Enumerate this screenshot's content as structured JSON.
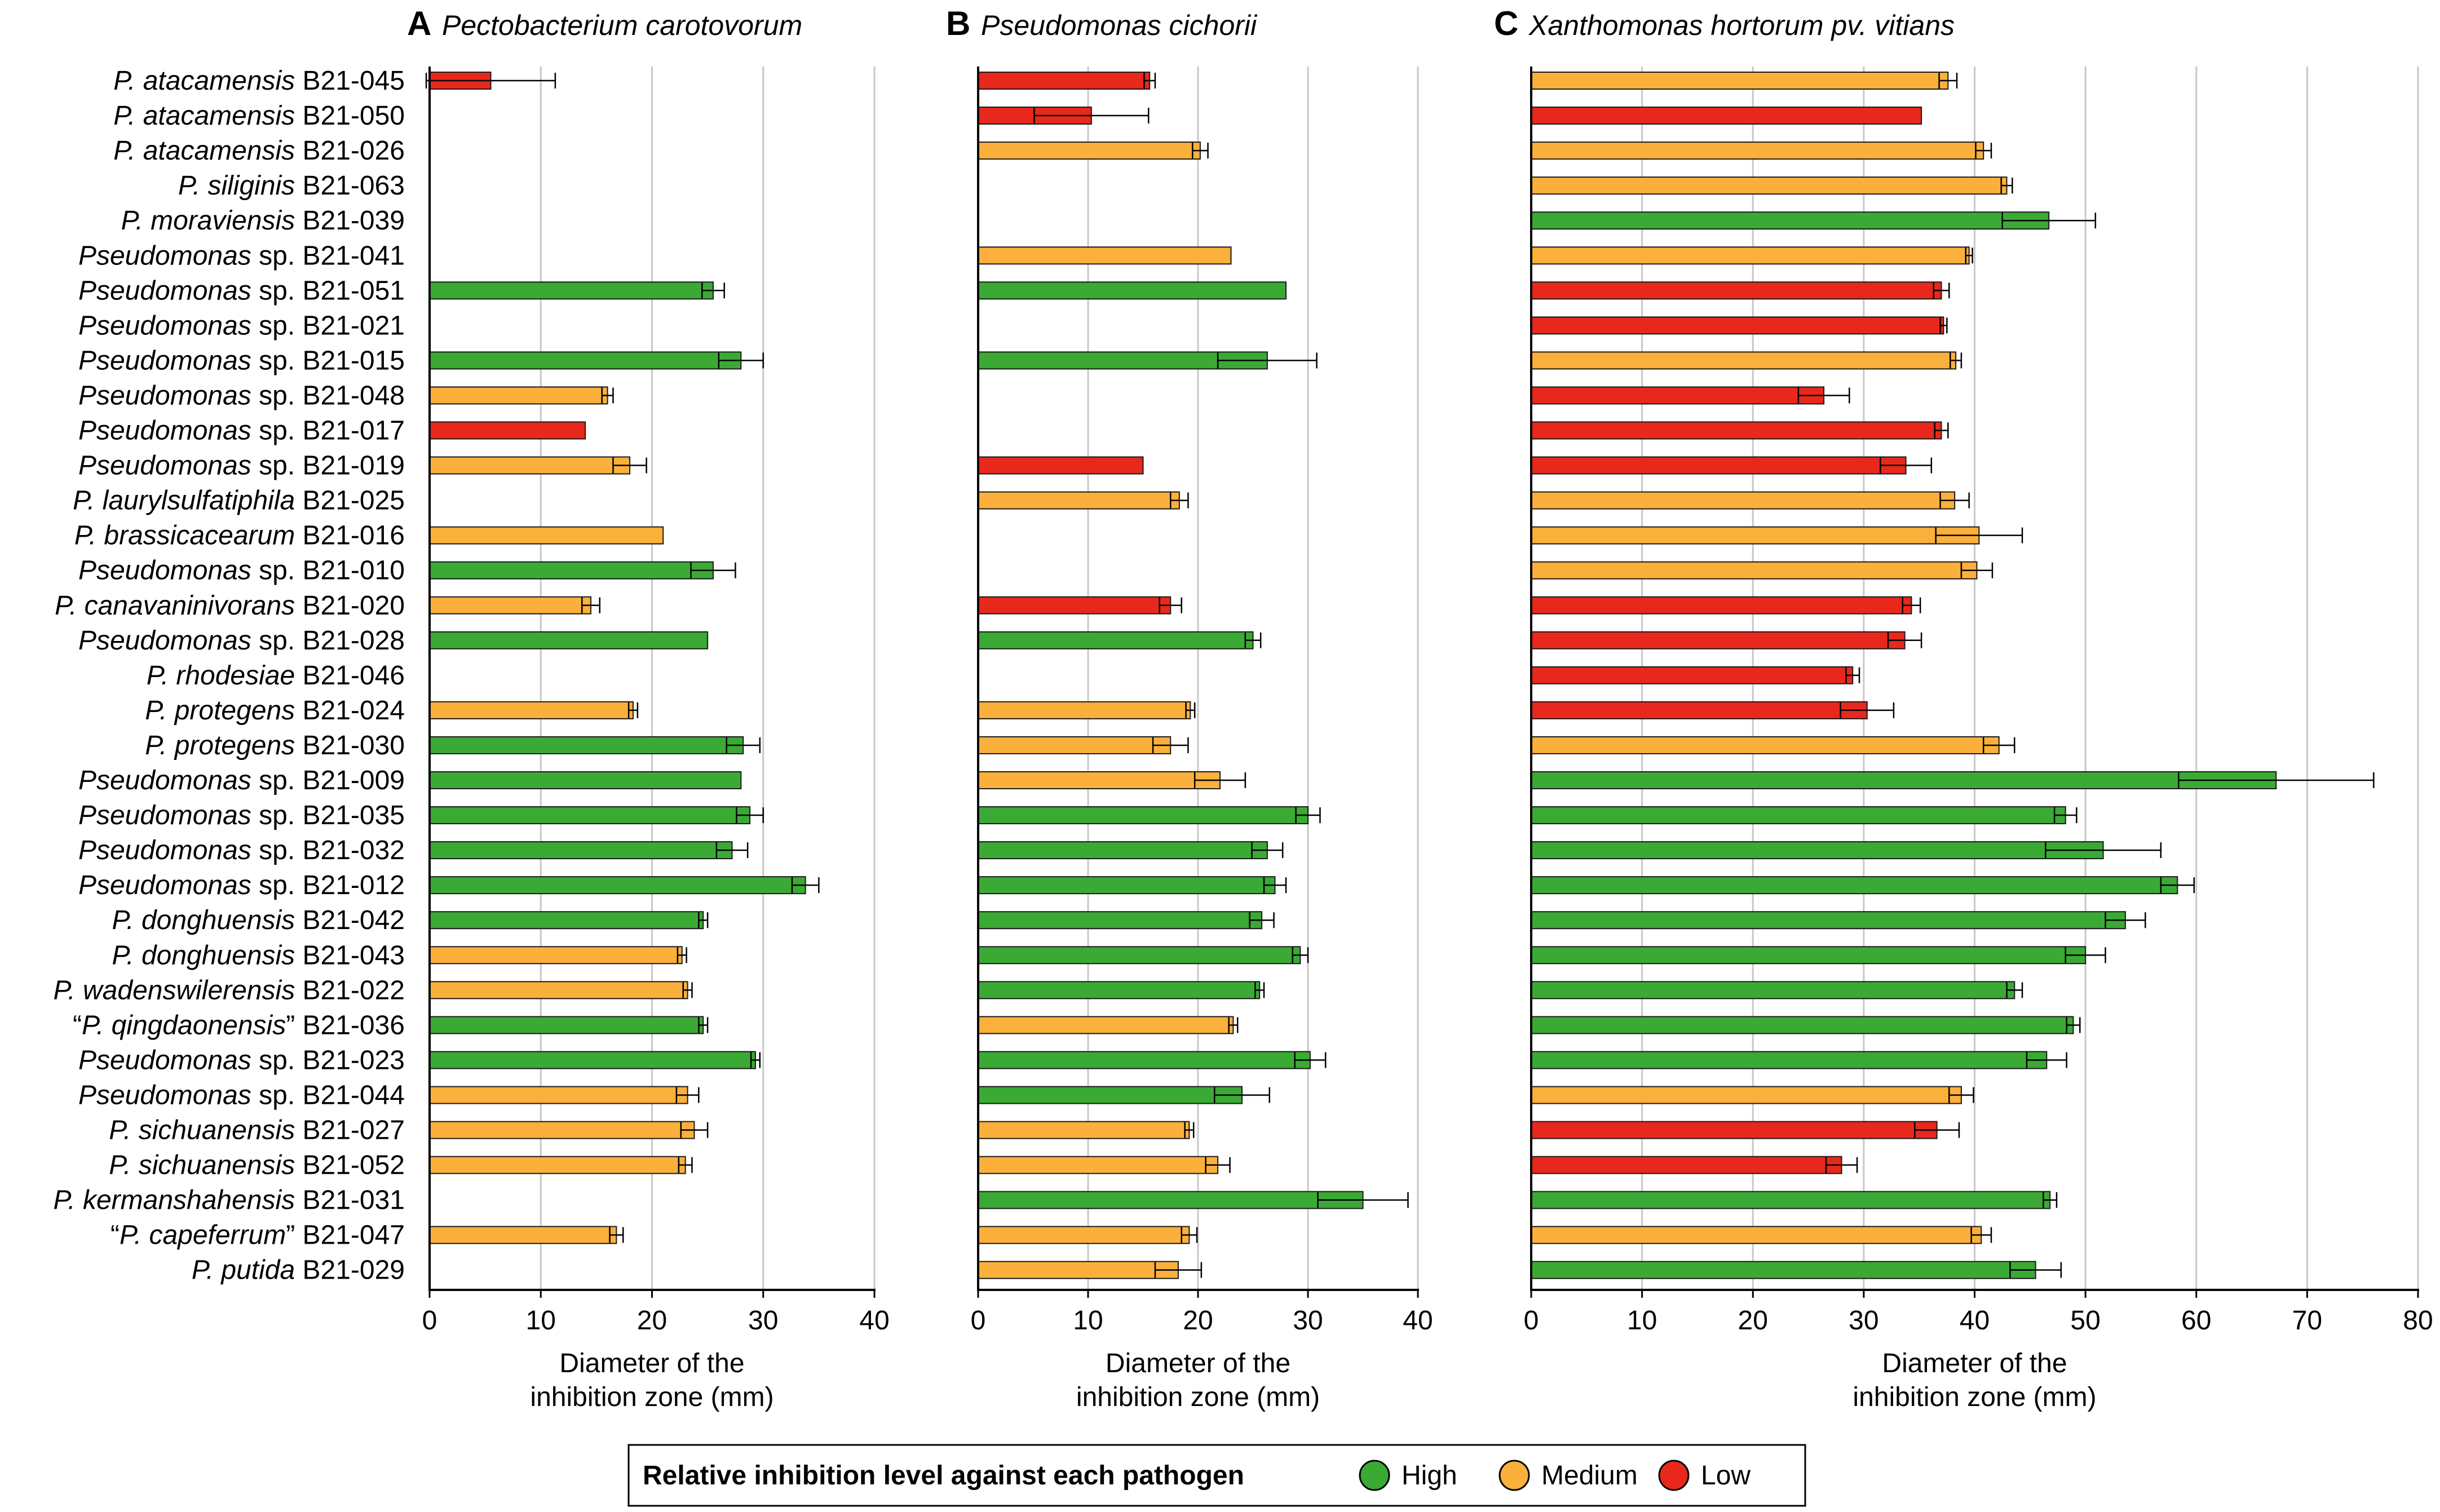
{
  "colors": {
    "High": "#3aaa35",
    "Medium": "#fbb03b",
    "Low": "#e8281c",
    "grid": "#c8c8c8"
  },
  "legend": {
    "title": "Relative inhibition level against each pathogen",
    "items": [
      {
        "label": "High",
        "level": "High"
      },
      {
        "label": "Medium",
        "level": "Medium"
      },
      {
        "label": "Low",
        "level": "Low"
      }
    ]
  },
  "strains": [
    {
      "name": "P. atacamensis",
      "prefix": "",
      "suffix": "",
      "code": "B21-045"
    },
    {
      "name": "P. atacamensis",
      "prefix": "",
      "suffix": "",
      "code": "B21-050"
    },
    {
      "name": "P. atacamensis",
      "prefix": "",
      "suffix": "",
      "code": "B21-026"
    },
    {
      "name": "P. siliginis",
      "prefix": "",
      "suffix": "",
      "code": "B21-063"
    },
    {
      "name": "P. moraviensis",
      "prefix": "",
      "suffix": "",
      "code": "B21-039"
    },
    {
      "name": "Pseudomonas",
      "prefix": "",
      "suffix": " sp.",
      "code": "B21-041"
    },
    {
      "name": "Pseudomonas",
      "prefix": "",
      "suffix": " sp.",
      "code": "B21-051"
    },
    {
      "name": "Pseudomonas",
      "prefix": "",
      "suffix": " sp.",
      "code": "B21-021"
    },
    {
      "name": "Pseudomonas",
      "prefix": "",
      "suffix": " sp.",
      "code": "B21-015"
    },
    {
      "name": "Pseudomonas",
      "prefix": "",
      "suffix": " sp.",
      "code": "B21-048"
    },
    {
      "name": "Pseudomonas",
      "prefix": "",
      "suffix": " sp.",
      "code": "B21-017"
    },
    {
      "name": "Pseudomonas",
      "prefix": "",
      "suffix": " sp.",
      "code": "B21-019"
    },
    {
      "name": "P. laurylsulfatiphila",
      "prefix": "",
      "suffix": "",
      "code": "B21-025"
    },
    {
      "name": "P. brassicacearum",
      "prefix": "",
      "suffix": "",
      "code": "B21-016"
    },
    {
      "name": "Pseudomonas",
      "prefix": "",
      "suffix": " sp.",
      "code": "B21-010"
    },
    {
      "name": "P. canavaninivorans",
      "prefix": "",
      "suffix": "",
      "code": "B21-020"
    },
    {
      "name": "Pseudomonas",
      "prefix": "",
      "suffix": " sp.",
      "code": "B21-028"
    },
    {
      "name": "P. rhodesiae",
      "prefix": "",
      "suffix": "",
      "code": "B21-046"
    },
    {
      "name": "P. protegens",
      "prefix": "",
      "suffix": "",
      "code": "B21-024"
    },
    {
      "name": "P. protegens",
      "prefix": "",
      "suffix": "",
      "code": "B21-030"
    },
    {
      "name": "Pseudomonas",
      "prefix": "",
      "suffix": " sp.",
      "code": "B21-009"
    },
    {
      "name": "Pseudomonas",
      "prefix": "",
      "suffix": " sp.",
      "code": "B21-035"
    },
    {
      "name": "Pseudomonas",
      "prefix": "",
      "suffix": " sp.",
      "code": "B21-032"
    },
    {
      "name": "Pseudomonas",
      "prefix": "",
      "suffix": " sp.",
      "code": "B21-012"
    },
    {
      "name": "P. donghuensis",
      "prefix": "",
      "suffix": "",
      "code": "B21-042"
    },
    {
      "name": "P. donghuensis",
      "prefix": "",
      "suffix": "",
      "code": "B21-043"
    },
    {
      "name": "P. wadenswilerensis",
      "prefix": "",
      "suffix": "",
      "code": "B21-022"
    },
    {
      "name": "P. qingdaonensis",
      "prefix": "“",
      "suffix": "”",
      "code": "B21-036"
    },
    {
      "name": "Pseudomonas",
      "prefix": "",
      "suffix": " sp.",
      "code": "B21-023"
    },
    {
      "name": "Pseudomonas",
      "prefix": "",
      "suffix": " sp.",
      "code": "B21-044"
    },
    {
      "name": "P. sichuanensis",
      "prefix": "",
      "suffix": "",
      "code": "B21-027"
    },
    {
      "name": "P. sichuanensis",
      "prefix": "",
      "suffix": "",
      "code": "B21-052"
    },
    {
      "name": "P. kermanshahensis",
      "prefix": "",
      "suffix": "",
      "code": "B21-031"
    },
    {
      "name": "P. capeferrum",
      "prefix": "“",
      "suffix": "”",
      "code": "B21-047"
    },
    {
      "name": "P. putida",
      "prefix": "",
      "suffix": "",
      "code": "B21-029"
    }
  ],
  "chart_data": [
    {
      "type": "bar",
      "orientation": "horizontal",
      "panel": "A",
      "title": "Pectobacterium carotovorum",
      "xlabel": "Diameter of the inhibition zone (mm)",
      "xlabel_lines": [
        "Diameter of the",
        "inhibition zone (mm)"
      ],
      "xlim": [
        0,
        40
      ],
      "xticks": [
        0,
        10,
        20,
        30,
        40
      ],
      "grid": true,
      "values": [
        5.5,
        null,
        null,
        null,
        null,
        null,
        25.5,
        null,
        28,
        16,
        14,
        18,
        null,
        21,
        25.5,
        14.5,
        25,
        null,
        18.3,
        28.2,
        28,
        28.8,
        27.2,
        33.8,
        24.6,
        22.7,
        23.2,
        24.6,
        29.3,
        23.2,
        23.8,
        23,
        null,
        16.8,
        null
      ],
      "errors": [
        5.8,
        null,
        null,
        null,
        null,
        null,
        1.0,
        null,
        2.0,
        0.5,
        0,
        1.5,
        null,
        0,
        2.0,
        0.8,
        0,
        null,
        0.4,
        1.5,
        0,
        1.2,
        1.4,
        1.2,
        0.4,
        0.4,
        0.4,
        0.4,
        0.4,
        1.0,
        1.2,
        0.6,
        null,
        0.6,
        null
      ],
      "levels": [
        "Low",
        null,
        null,
        null,
        null,
        null,
        "High",
        null,
        "High",
        "Medium",
        "Low",
        "Medium",
        null,
        "Medium",
        "High",
        "Medium",
        "High",
        null,
        "Medium",
        "High",
        "High",
        "High",
        "High",
        "High",
        "High",
        "Medium",
        "Medium",
        "High",
        "High",
        "Medium",
        "Medium",
        "Medium",
        null,
        "Medium",
        null
      ]
    },
    {
      "type": "bar",
      "orientation": "horizontal",
      "panel": "B",
      "title": "Pseudomonas cichorii",
      "xlabel": "Diameter of the inhibition zone (mm)",
      "xlabel_lines": [
        "Diameter of the",
        "inhibition zone (mm)"
      ],
      "xlim": [
        0,
        40
      ],
      "xticks": [
        0,
        10,
        20,
        30,
        40
      ],
      "grid": true,
      "values": [
        15.6,
        10.3,
        20.2,
        null,
        null,
        23,
        28,
        null,
        26.3,
        null,
        null,
        15,
        18.3,
        null,
        null,
        17.5,
        25,
        null,
        19.3,
        17.5,
        22,
        30,
        26.3,
        27,
        25.8,
        29.3,
        25.6,
        23.2,
        30.2,
        24,
        19.2,
        21.8,
        35,
        19.2,
        18.2
      ],
      "errors": [
        0.5,
        5.2,
        0.7,
        null,
        null,
        0,
        0,
        null,
        4.5,
        null,
        null,
        0,
        0.8,
        null,
        null,
        1.0,
        0.7,
        null,
        0.4,
        1.6,
        2.3,
        1.1,
        1.4,
        1.0,
        1.1,
        0.7,
        0.4,
        0.4,
        1.4,
        2.5,
        0.4,
        1.1,
        4.1,
        0.7,
        2.1
      ],
      "levels": [
        "Low",
        "Low",
        "Medium",
        null,
        null,
        "Medium",
        "High",
        null,
        "High",
        null,
        null,
        "Low",
        "Medium",
        null,
        null,
        "Low",
        "High",
        null,
        "Medium",
        "Medium",
        "Medium",
        "High",
        "High",
        "High",
        "High",
        "High",
        "High",
        "Medium",
        "High",
        "High",
        "Medium",
        "Medium",
        "High",
        "Medium",
        "Medium"
      ]
    },
    {
      "type": "bar",
      "orientation": "horizontal",
      "panel": "C",
      "title": "Xanthomonas hortorum pv. vitians",
      "xlabel": "Diameter of the inhibition zone (mm)",
      "xlabel_lines": [
        "Diameter of the",
        "inhibition zone (mm)"
      ],
      "xlim": [
        0,
        80
      ],
      "xticks": [
        0,
        10,
        20,
        30,
        40,
        50,
        60,
        70,
        80
      ],
      "grid": true,
      "values": [
        37.6,
        35.2,
        40.8,
        42.9,
        46.7,
        39.5,
        37,
        37.2,
        38.3,
        26.4,
        37,
        33.8,
        38.2,
        40.4,
        40.2,
        34.3,
        33.7,
        29,
        30.3,
        42.2,
        67.2,
        48.2,
        51.6,
        58.3,
        53.6,
        50,
        43.6,
        48.9,
        46.5,
        38.8,
        36.6,
        28,
        46.8,
        40.6,
        45.5
      ],
      "errors": [
        0.8,
        0,
        0.7,
        0.5,
        4.2,
        0.3,
        0.7,
        0.3,
        0.5,
        2.3,
        0.6,
        2.3,
        1.3,
        3.9,
        1.4,
        0.8,
        1.5,
        0.6,
        2.4,
        1.4,
        8.8,
        1.0,
        5.2,
        1.5,
        1.8,
        1.8,
        0.7,
        0.6,
        1.8,
        1.1,
        2.0,
        1.4,
        0.6,
        0.9,
        2.3
      ],
      "levels": [
        "Medium",
        "Low",
        "Medium",
        "Medium",
        "High",
        "Medium",
        "Low",
        "Low",
        "Medium",
        "Low",
        "Low",
        "Low",
        "Medium",
        "Medium",
        "Medium",
        "Low",
        "Low",
        "Low",
        "Low",
        "Medium",
        "High",
        "High",
        "High",
        "High",
        "High",
        "High",
        "High",
        "High",
        "High",
        "Medium",
        "Low",
        "Low",
        "High",
        "Medium",
        "High"
      ]
    }
  ]
}
